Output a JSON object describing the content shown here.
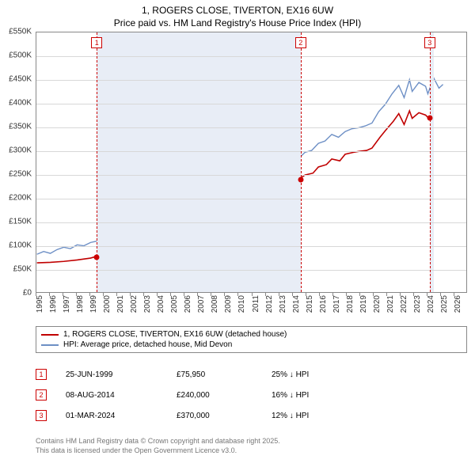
{
  "title": {
    "line1": "1, ROGERS CLOSE, TIVERTON, EX16 6UW",
    "line2": "Price paid vs. HM Land Registry's House Price Index (HPI)"
  },
  "chart": {
    "type": "line",
    "background_color": "#ffffff",
    "bluewash_color": "#e8edf6",
    "grid_color": "#d8d8d8",
    "axis_color": "#888888",
    "xmin": 1995,
    "xmax": 2027,
    "ymin": 0,
    "ymax": 550000,
    "ytick_step": 50000,
    "ytick_labels": [
      "£0",
      "£50K",
      "£100K",
      "£150K",
      "£200K",
      "£250K",
      "£300K",
      "£350K",
      "£400K",
      "£450K",
      "£500K",
      "£550K"
    ],
    "xtick_years": [
      1995,
      1996,
      1997,
      1998,
      1999,
      2000,
      2001,
      2002,
      2003,
      2004,
      2005,
      2006,
      2007,
      2008,
      2009,
      2010,
      2011,
      2012,
      2013,
      2014,
      2015,
      2016,
      2017,
      2018,
      2019,
      2020,
      2021,
      2022,
      2023,
      2024,
      2025,
      2026
    ],
    "bluewash_ranges": [
      [
        1999.48,
        2014.6
      ],
      [
        2024.17,
        2024.5
      ]
    ],
    "series": {
      "price_paid": {
        "color": "#c00000",
        "width": 1.6,
        "points": [
          [
            1995,
            62000
          ],
          [
            1996,
            63000
          ],
          [
            1997,
            65000
          ],
          [
            1998,
            68000
          ],
          [
            1999,
            72000
          ],
          [
            1999.48,
            75950
          ],
          [
            2000,
            78000
          ],
          [
            2001,
            85000
          ],
          [
            2002,
            110000
          ],
          [
            2003,
            140000
          ],
          [
            2004,
            175000
          ],
          [
            2004.7,
            198000
          ],
          [
            2005,
            180000
          ],
          [
            2005.5,
            192000
          ],
          [
            2006,
            205000
          ],
          [
            2006.5,
            222000
          ],
          [
            2007,
            230000
          ],
          [
            2007.6,
            228000
          ],
          [
            2007.8,
            210000
          ],
          [
            2008,
            185000
          ],
          [
            2008.5,
            174000
          ],
          [
            2009,
            182000
          ],
          [
            2009.5,
            196000
          ],
          [
            2010,
            190000
          ],
          [
            2010.5,
            200000
          ],
          [
            2011,
            192000
          ],
          [
            2011.6,
            185000
          ],
          [
            2012,
            198000
          ],
          [
            2012.6,
            202000
          ],
          [
            2013,
            205000
          ],
          [
            2013.6,
            216000
          ],
          [
            2014,
            224000
          ],
          [
            2014.6,
            240000
          ],
          [
            2015,
            248000
          ],
          [
            2015.6,
            252000
          ],
          [
            2016,
            265000
          ],
          [
            2016.6,
            270000
          ],
          [
            2017,
            282000
          ],
          [
            2017.6,
            278000
          ],
          [
            2018,
            292000
          ],
          [
            2018.6,
            296000
          ],
          [
            2019,
            298000
          ],
          [
            2019.6,
            300000
          ],
          [
            2020,
            305000
          ],
          [
            2020.6,
            328000
          ],
          [
            2021,
            342000
          ],
          [
            2021.6,
            362000
          ],
          [
            2022,
            378000
          ],
          [
            2022.4,
            355000
          ],
          [
            2022.8,
            384000
          ],
          [
            2023,
            368000
          ],
          [
            2023.5,
            380000
          ],
          [
            2024,
            375000
          ],
          [
            2024.17,
            370000
          ]
        ]
      },
      "hpi": {
        "color": "#6d8fc5",
        "width": 1.4,
        "points": [
          [
            1995,
            80000
          ],
          [
            1995.5,
            86000
          ],
          [
            1996,
            82000
          ],
          [
            1996.5,
            90000
          ],
          [
            1997,
            95000
          ],
          [
            1997.5,
            92000
          ],
          [
            1998,
            100000
          ],
          [
            1998.5,
            98000
          ],
          [
            1999,
            105000
          ],
          [
            1999.48,
            108000
          ],
          [
            2000,
            118000
          ],
          [
            2000.5,
            115000
          ],
          [
            2001,
            130000
          ],
          [
            2001.5,
            140000
          ],
          [
            2002,
            160000
          ],
          [
            2002.5,
            178000
          ],
          [
            2003,
            195000
          ],
          [
            2003.5,
            210000
          ],
          [
            2004,
            225000
          ],
          [
            2004.5,
            248000
          ],
          [
            2005,
            235000
          ],
          [
            2005.5,
            250000
          ],
          [
            2006,
            262000
          ],
          [
            2006.5,
            275000
          ],
          [
            2007,
            288000
          ],
          [
            2007.5,
            282000
          ],
          [
            2008,
            248000
          ],
          [
            2008.5,
            225000
          ],
          [
            2009,
            232000
          ],
          [
            2009.5,
            252000
          ],
          [
            2010,
            244000
          ],
          [
            2010.5,
            256000
          ],
          [
            2011,
            248000
          ],
          [
            2011.5,
            240000
          ],
          [
            2012,
            252000
          ],
          [
            2012.5,
            258000
          ],
          [
            2013,
            260000
          ],
          [
            2013.5,
            272000
          ],
          [
            2014,
            282000
          ],
          [
            2014.6,
            285000
          ],
          [
            2015,
            296000
          ],
          [
            2015.5,
            300000
          ],
          [
            2016,
            315000
          ],
          [
            2016.5,
            320000
          ],
          [
            2017,
            334000
          ],
          [
            2017.5,
            328000
          ],
          [
            2018,
            340000
          ],
          [
            2018.5,
            346000
          ],
          [
            2019,
            348000
          ],
          [
            2019.5,
            352000
          ],
          [
            2020,
            358000
          ],
          [
            2020.5,
            382000
          ],
          [
            2021,
            398000
          ],
          [
            2021.5,
            420000
          ],
          [
            2022,
            438000
          ],
          [
            2022.4,
            412000
          ],
          [
            2022.8,
            450000
          ],
          [
            2023,
            425000
          ],
          [
            2023.5,
            444000
          ],
          [
            2024,
            436000
          ],
          [
            2024.17,
            420000
          ],
          [
            2024.6,
            454000
          ],
          [
            2025,
            432000
          ],
          [
            2025.3,
            440000
          ]
        ]
      }
    },
    "sale_markers": [
      {
        "n": "1",
        "x": 1999.48,
        "y": 75950
      },
      {
        "n": "2",
        "x": 2014.6,
        "y": 240000
      },
      {
        "n": "3",
        "x": 2024.17,
        "y": 370000
      }
    ]
  },
  "legend": {
    "items": [
      {
        "color": "#c00000",
        "label": "1, ROGERS CLOSE, TIVERTON, EX16 6UW (detached house)"
      },
      {
        "color": "#6d8fc5",
        "label": "HPI: Average price, detached house, Mid Devon"
      }
    ]
  },
  "sales": [
    {
      "n": "1",
      "date": "25-JUN-1999",
      "price": "£75,950",
      "hpi": "25% ↓ HPI"
    },
    {
      "n": "2",
      "date": "08-AUG-2014",
      "price": "£240,000",
      "hpi": "16% ↓ HPI"
    },
    {
      "n": "3",
      "date": "01-MAR-2024",
      "price": "£370,000",
      "hpi": "12% ↓ HPI"
    }
  ],
  "footer": {
    "line1": "Contains HM Land Registry data © Crown copyright and database right 2025.",
    "line2": "This data is licensed under the Open Government Licence v3.0."
  }
}
